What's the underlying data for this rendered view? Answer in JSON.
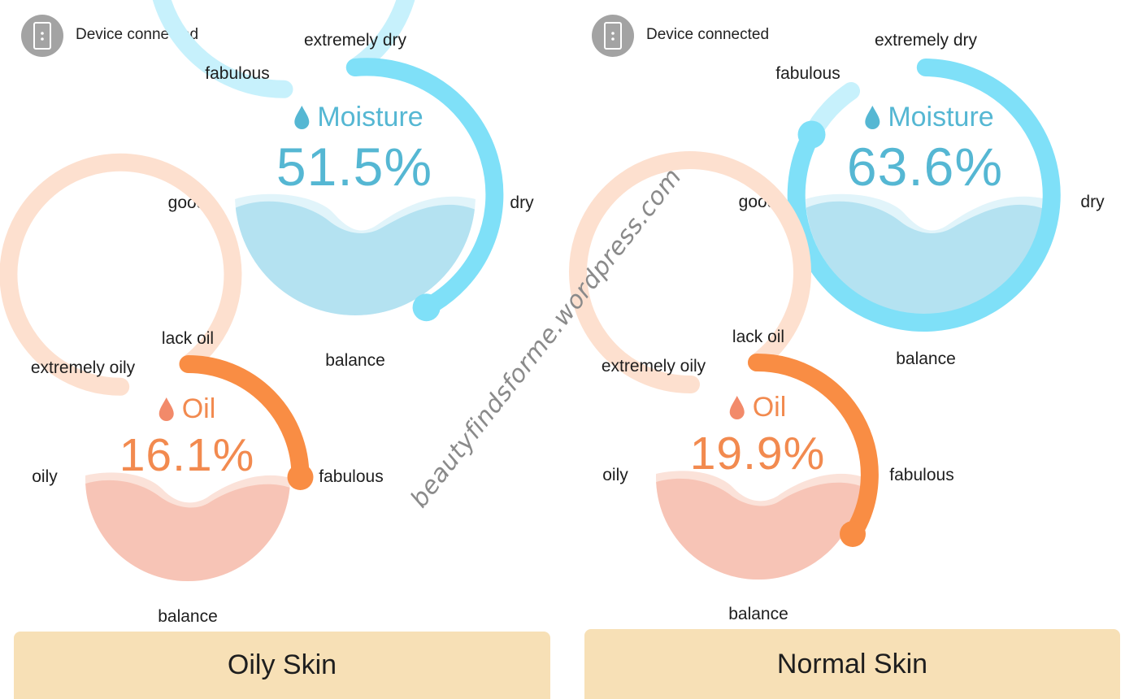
{
  "colors": {
    "moisture_text": "#55b7d3",
    "moisture_arc": "#7fe0f8",
    "moisture_track": "#c7f1fc",
    "moisture_fill": "#b4e2f1",
    "oil_text": "#f28a4f",
    "oil_arc": "#f98d44",
    "oil_track": "#fde0cf",
    "oil_fill": "#f7c4b6",
    "card_bg": "#f7e0b6",
    "device_icon_bg": "#a3a3a3"
  },
  "watermark": "beautyfindsforme.wordpress.com",
  "panels": [
    {
      "id": "left",
      "device_status": "Device connected",
      "device_icon": "phone-device-icon",
      "moisture": {
        "title": "Moisture",
        "icon": "water-drop-icon",
        "value": 51.5,
        "value_text": "51.5%",
        "labels": {
          "top": "extremely dry",
          "top_left": "fabulous",
          "left": "good",
          "right": "dry",
          "bottom": "balance"
        }
      },
      "oil": {
        "title": "Oil",
        "icon": "oil-drop-icon",
        "value": 16.1,
        "value_text": "16.1%",
        "labels": {
          "top": "lack oil",
          "top_left": "extremely oily",
          "left": "oily",
          "right": "fabulous",
          "bottom": "balance"
        }
      },
      "skin_type": "Oily Skin"
    },
    {
      "id": "right",
      "device_status": "Device connected",
      "device_icon": "phone-device-icon",
      "moisture": {
        "title": "Moisture",
        "icon": "water-drop-icon",
        "value": 63.6,
        "value_text": "63.6%",
        "labels": {
          "top": "extremely dry",
          "top_left": "fabulous",
          "left": "good",
          "right": "dry",
          "bottom": "balance"
        }
      },
      "oil": {
        "title": "Oil",
        "icon": "oil-drop-icon",
        "value": 19.9,
        "value_text": "19.9%",
        "labels": {
          "top": "lack oil",
          "top_left": "extremely oily",
          "left": "oily",
          "right": "fabulous",
          "bottom": "balance"
        }
      },
      "skin_type": "Normal Skin"
    }
  ]
}
